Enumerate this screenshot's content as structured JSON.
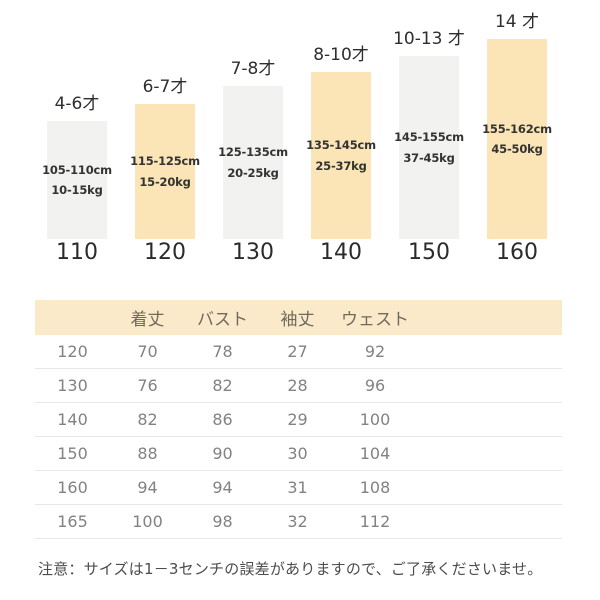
{
  "colors": {
    "bar_default": "#f2f2f1",
    "bar_highlight": "#fbe4b6",
    "table_header_bg": "#fbeac9",
    "row_divider": "#e8e8e6",
    "table_text": "#828282",
    "table_header_text": "#6f6a5d",
    "chart_text": "#2e2e2e",
    "bar_text": "#333333",
    "note_text": "#4c4c4c"
  },
  "chart_data": [
    {
      "type": "bar",
      "title": "",
      "xlabel": "",
      "ylabel": "",
      "categories": [
        "110",
        "120",
        "130",
        "140",
        "150",
        "160"
      ],
      "series": [
        {
          "name": "age",
          "values": [
            "4-6才",
            "6-7才",
            "7-8才",
            "8-10才",
            "10-13 才",
            "14 才"
          ]
        },
        {
          "name": "height-range",
          "values": [
            "105-110cm",
            "115-125cm",
            "125-135cm",
            "135-145cm",
            "145-155cm",
            "155-162cm"
          ]
        },
        {
          "name": "weight-range",
          "values": [
            "10-15kg",
            "15-20kg",
            "20-25kg",
            "25-37kg",
            "37-45kg",
            "45-50kg"
          ]
        }
      ],
      "bar_heights_relative": [
        118,
        135,
        153,
        167,
        183,
        200
      ],
      "highlighted": [
        false,
        true,
        false,
        true,
        false,
        true
      ],
      "legend": "none",
      "grid": false
    },
    {
      "type": "table",
      "headers": [
        "",
        "着丈",
        "バスト",
        "袖丈",
        "ウェスト"
      ],
      "rows": [
        [
          "120",
          "70",
          "78",
          "27",
          "92"
        ],
        [
          "130",
          "76",
          "82",
          "28",
          "96"
        ],
        [
          "140",
          "82",
          "86",
          "29",
          "100"
        ],
        [
          "150",
          "88",
          "90",
          "30",
          "104"
        ],
        [
          "160",
          "94",
          "94",
          "31",
          "108"
        ],
        [
          "165",
          "100",
          "98",
          "32",
          "112"
        ]
      ]
    }
  ],
  "note": "注意：サイズは1－3センチの誤差がありますので、ご了承くださいませ。"
}
